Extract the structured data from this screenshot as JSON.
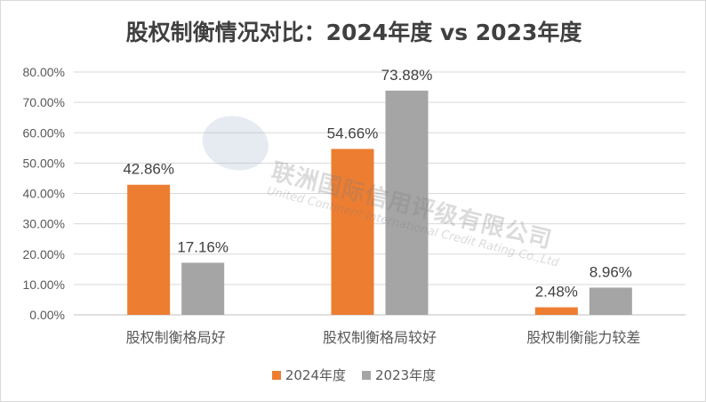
{
  "chart_data": {
    "type": "bar",
    "title": "股权制衡情况对比：2024年度 vs 2023年度",
    "categories": [
      "股权制衡格局好",
      "股权制衡格局较好",
      "股权制衡能力较差"
    ],
    "series": [
      {
        "name": "2024年度",
        "values": [
          42.86,
          54.66,
          2.48
        ],
        "labels": [
          "42.86%",
          "54.66%",
          "2.48%"
        ],
        "color": "#ED7D31"
      },
      {
        "name": "2023年度",
        "values": [
          17.16,
          73.88,
          8.96
        ],
        "labels": [
          "17.16%",
          "73.88%",
          "8.96%"
        ],
        "color": "#A5A5A5"
      }
    ],
    "yticks": [
      "0.00%",
      "10.00%",
      "20.00%",
      "30.00%",
      "40.00%",
      "50.00%",
      "60.00%",
      "70.00%",
      "80.00%"
    ],
    "ylim": [
      0,
      80
    ],
    "grid": true,
    "legend": "bottom",
    "xlabel": "",
    "ylabel": ""
  },
  "watermark": {
    "cn": "联洲国际信用评级有限公司",
    "en": "United Continent International Credit Rating Co.,Ltd"
  }
}
